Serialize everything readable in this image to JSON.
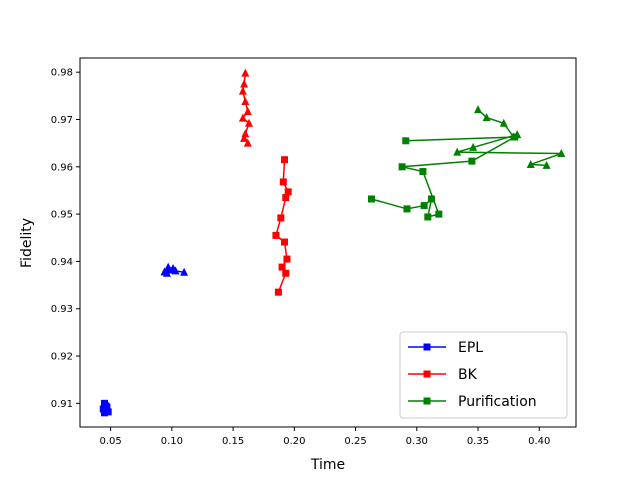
{
  "chart_data": {
    "type": "scatter",
    "title": "",
    "xlabel": "Time",
    "ylabel": "Fidelity",
    "xlim": [
      0.025,
      0.43
    ],
    "ylim": [
      0.905,
      0.983
    ],
    "xticks": [
      0.05,
      0.1,
      0.15,
      0.2,
      0.25,
      0.3,
      0.35,
      0.4
    ],
    "xtick_labels": [
      "0.05",
      "0.10",
      "0.15",
      "0.20",
      "0.25",
      "0.30",
      "0.35",
      "0.40"
    ],
    "yticks": [
      0.91,
      0.92,
      0.93,
      0.94,
      0.95,
      0.96,
      0.97,
      0.98
    ],
    "ytick_labels": [
      "0.91",
      "0.92",
      "0.93",
      "0.94",
      "0.95",
      "0.96",
      "0.97",
      "0.98"
    ],
    "grid": false,
    "legend_position": "bottom-right",
    "series": [
      {
        "name": "EPL",
        "color": "#0000ff",
        "marker": "square",
        "line": true,
        "points": [
          [
            0.045,
            0.91
          ],
          [
            0.046,
            0.9085
          ],
          [
            0.047,
            0.9092
          ],
          [
            0.044,
            0.9088
          ],
          [
            0.048,
            0.9082
          ],
          [
            0.046,
            0.9095
          ],
          [
            0.045,
            0.908
          ]
        ]
      },
      {
        "name": "EPL",
        "color": "#0000ff",
        "marker": "triangle",
        "line": true,
        "points": [
          [
            0.094,
            0.9378
          ],
          [
            0.097,
            0.9388
          ],
          [
            0.101,
            0.9385
          ],
          [
            0.096,
            0.9375
          ],
          [
            0.103,
            0.938
          ],
          [
            0.11,
            0.9377
          ],
          [
            0.098,
            0.9382
          ]
        ]
      },
      {
        "name": "BK",
        "color": "#ff0000",
        "marker": "square",
        "line": true,
        "points": [
          [
            0.192,
            0.9615
          ],
          [
            0.191,
            0.9568
          ],
          [
            0.195,
            0.9547
          ],
          [
            0.193,
            0.9535
          ],
          [
            0.189,
            0.9492
          ],
          [
            0.185,
            0.9455
          ],
          [
            0.192,
            0.9441
          ],
          [
            0.194,
            0.9405
          ],
          [
            0.19,
            0.9388
          ],
          [
            0.193,
            0.9375
          ],
          [
            0.187,
            0.9335
          ]
        ]
      },
      {
        "name": "BK",
        "color": "#ff0000",
        "marker": "triangle",
        "line": true,
        "points": [
          [
            0.16,
            0.9798
          ],
          [
            0.159,
            0.9775
          ],
          [
            0.158,
            0.976
          ],
          [
            0.16,
            0.9738
          ],
          [
            0.162,
            0.9717
          ],
          [
            0.158,
            0.9703
          ],
          [
            0.163,
            0.9692
          ],
          [
            0.16,
            0.967
          ],
          [
            0.159,
            0.966
          ],
          [
            0.162,
            0.965
          ]
        ]
      },
      {
        "name": "Purification",
        "color": "#008000",
        "marker": "square",
        "line": true,
        "points": [
          [
            0.263,
            0.9532
          ],
          [
            0.292,
            0.9511
          ],
          [
            0.306,
            0.9518
          ],
          [
            0.312,
            0.9532
          ],
          [
            0.309,
            0.9494
          ],
          [
            0.318,
            0.95
          ],
          [
            0.305,
            0.959
          ],
          [
            0.288,
            0.96
          ],
          [
            0.345,
            0.9612
          ],
          [
            0.38,
            0.9663
          ],
          [
            0.291,
            0.9655
          ]
        ]
      },
      {
        "name": "Purification",
        "color": "#008000",
        "marker": "triangle",
        "line": true,
        "points": [
          [
            0.35,
            0.9721
          ],
          [
            0.357,
            0.9704
          ],
          [
            0.371,
            0.9692
          ],
          [
            0.379,
            0.9663
          ],
          [
            0.382,
            0.9668
          ],
          [
            0.346,
            0.9641
          ],
          [
            0.333,
            0.9631
          ],
          [
            0.418,
            0.9628
          ],
          [
            0.393,
            0.9605
          ],
          [
            0.406,
            0.9603
          ]
        ]
      }
    ],
    "legend": [
      {
        "label": "EPL",
        "color": "#0000ff"
      },
      {
        "label": "BK",
        "color": "#ff0000"
      },
      {
        "label": "Purification",
        "color": "#008000"
      }
    ]
  }
}
